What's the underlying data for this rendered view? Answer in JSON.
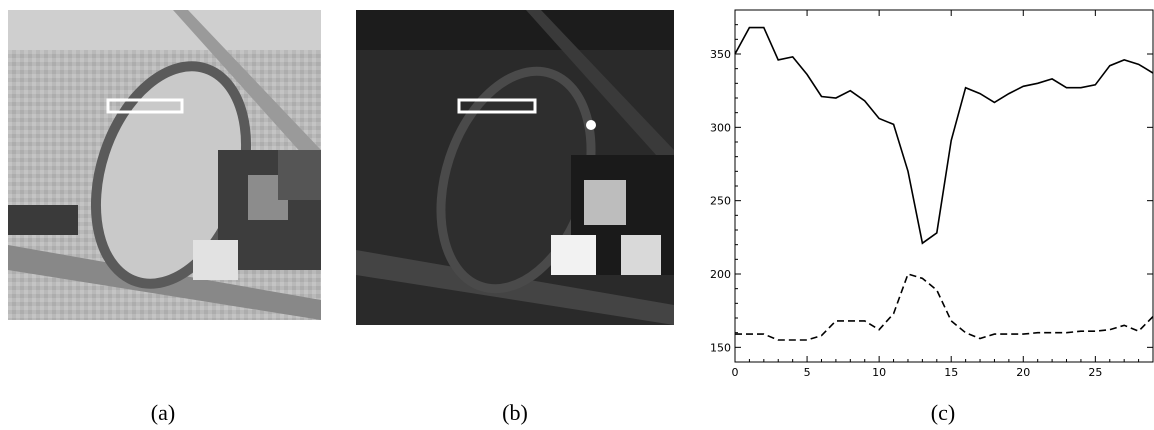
{
  "panels": {
    "a": {
      "caption": "(a)"
    },
    "b": {
      "caption": "(b)"
    },
    "c": {
      "caption": "(c)"
    }
  },
  "chart_data": {
    "type": "line",
    "title": "",
    "xlabel": "",
    "ylabel": "",
    "xlim": [
      0,
      29
    ],
    "ylim": [
      140,
      380
    ],
    "x_ticks": [
      0,
      5,
      10,
      15,
      20,
      25
    ],
    "y_ticks": [
      150,
      200,
      250,
      300,
      350
    ],
    "grid": false,
    "series": [
      {
        "style": "solid",
        "x": [
          0,
          1,
          2,
          3,
          4,
          5,
          6,
          7,
          8,
          9,
          10,
          11,
          12,
          13,
          14,
          15,
          16,
          17,
          18,
          19,
          20,
          21,
          22,
          23,
          24,
          25,
          26,
          27,
          28,
          29
        ],
        "values": [
          350,
          368,
          368,
          346,
          348,
          336,
          321,
          320,
          325,
          318,
          306,
          302,
          270,
          221,
          228,
          291,
          327,
          323,
          317,
          323,
          328,
          330,
          333,
          327,
          327,
          329,
          342,
          346,
          343,
          337
        ]
      },
      {
        "style": "dashed",
        "x": [
          0,
          1,
          2,
          3,
          4,
          5,
          6,
          7,
          8,
          9,
          10,
          11,
          12,
          13,
          14,
          15,
          16,
          17,
          18,
          19,
          20,
          21,
          22,
          23,
          24,
          25,
          26,
          27,
          28,
          29
        ],
        "values": [
          159,
          159,
          159,
          155,
          155,
          155,
          158,
          168,
          168,
          168,
          162,
          173,
          200,
          197,
          189,
          168,
          160,
          156,
          159,
          159,
          159,
          160,
          160,
          160,
          161,
          161,
          162,
          165,
          161,
          171
        ]
      }
    ]
  }
}
